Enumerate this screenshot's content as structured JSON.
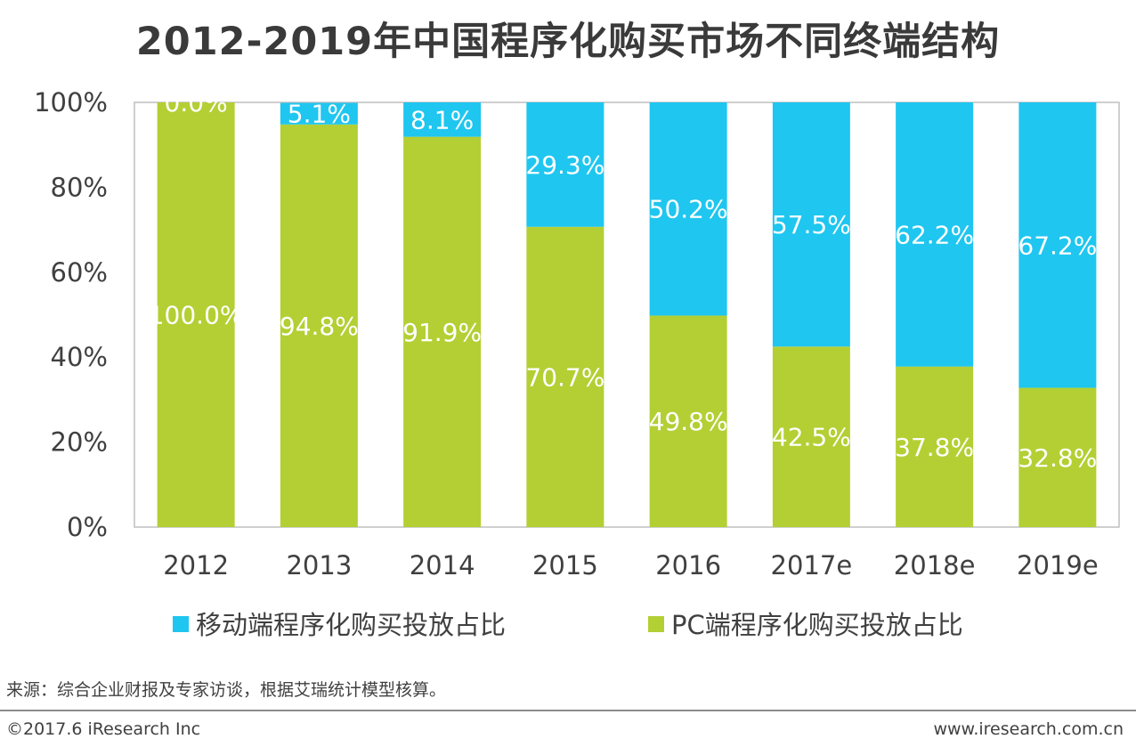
{
  "chart_data": {
    "type": "bar",
    "stacked": true,
    "title": "2012-2019年中国程序化购买市场不同终端结构",
    "categories": [
      "2012",
      "2013",
      "2014",
      "2015",
      "2016",
      "2017e",
      "2018e",
      "2019e"
    ],
    "series": [
      {
        "name": "PC端程序化购买投放占比",
        "color": "#b3cf34",
        "values": [
          100.0,
          94.8,
          91.9,
          70.7,
          49.8,
          42.5,
          37.8,
          32.8
        ],
        "labels": [
          "100.0%",
          "94.8%",
          "91.9%",
          "70.7%",
          "49.8%",
          "42.5%",
          "37.8%",
          "32.8%"
        ]
      },
      {
        "name": "移动端程序化购买投放占比",
        "color": "#1fc6f0",
        "values": [
          0.0,
          5.1,
          8.1,
          29.3,
          50.2,
          57.5,
          62.2,
          67.2
        ],
        "labels": [
          "0.0%",
          "5.1%",
          "8.1%",
          "29.3%",
          "50.2%",
          "57.5%",
          "62.2%",
          "67.2%"
        ]
      }
    ],
    "ylim": [
      0,
      100
    ],
    "yticks": [
      0,
      20,
      40,
      60,
      80,
      100
    ],
    "ytick_labels": [
      "0%",
      "20%",
      "40%",
      "60%",
      "80%",
      "100%"
    ],
    "xlabel": "",
    "ylabel": "",
    "legend": "bottom",
    "grid": false
  },
  "legend": {
    "mobile_label": "移动端程序化购买投放占比",
    "pc_label": "PC端程序化购买投放占比"
  },
  "footer": {
    "source": "来源：综合企业财报及专家访谈，根据艾瑞统计模型核算。",
    "copyright": "©2017.6 iResearch Inc",
    "website": "www.iresearch.com.cn"
  }
}
